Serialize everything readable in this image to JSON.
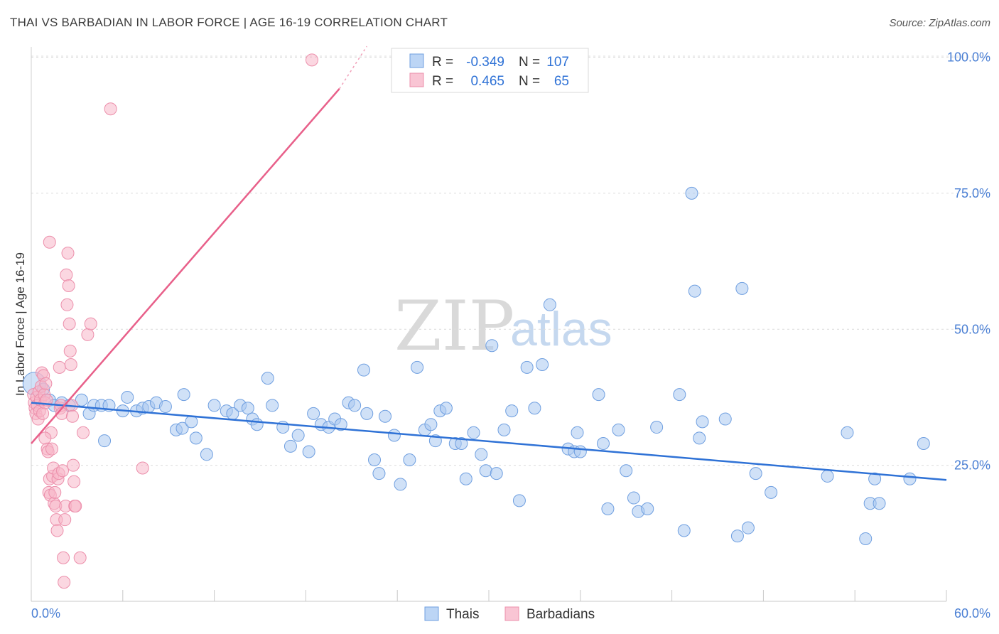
{
  "title": "THAI VS BARBADIAN IN LABOR FORCE | AGE 16-19 CORRELATION CHART",
  "source": "Source: ZipAtlas.com",
  "colors": {
    "thai_fill": "#a9c8f0",
    "thai_stroke": "#6f9fe0",
    "thai_line": "#2f72d6",
    "barb_fill": "#f7b6c8",
    "barb_stroke": "#ec8fab",
    "barb_line": "#e8608a",
    "label_blue": "#4a7fd4"
  },
  "legend": {
    "row1": {
      "r_label": "R =",
      "r_value": "-0.349",
      "n_label": "N =",
      "n_value": "107"
    },
    "row2": {
      "r_label": "R =",
      "r_value": "0.465",
      "n_label": "N =",
      "n_value": "65"
    }
  },
  "watermark": {
    "zip": "ZIP",
    "atlas": "atlas"
  },
  "chart_data": {
    "type": "scatter",
    "title": "THAI VS BARBADIAN IN LABOR FORCE | AGE 16-19 CORRELATION CHART",
    "xlabel": "",
    "ylabel": "In Labor Force | Age 16-19",
    "xlim": [
      0,
      60
    ],
    "ylim": [
      0,
      105
    ],
    "x_tick_labels": {
      "left": "0.0%",
      "right": "60.0%"
    },
    "y_tick_labels": [
      "100.0%",
      "75.0%",
      "50.0%",
      "25.0%"
    ],
    "y_tick_values": [
      100,
      75,
      50,
      25
    ],
    "series": [
      {
        "name": "Thais",
        "r": -0.349,
        "n": 107,
        "trend": {
          "x1": 0,
          "y1": 36.5,
          "x2": 60,
          "y2": 22.3
        },
        "points": [
          [
            0.2,
            40.0
          ],
          [
            0.8,
            39.0
          ],
          [
            1.2,
            37.0
          ],
          [
            1.5,
            36.0
          ],
          [
            2.0,
            36.5
          ],
          [
            2.5,
            36.0
          ],
          [
            3.3,
            37.0
          ],
          [
            3.8,
            34.5
          ],
          [
            4.1,
            36.0
          ],
          [
            4.6,
            36.0
          ],
          [
            4.8,
            29.5
          ],
          [
            5.1,
            36.0
          ],
          [
            6.0,
            35.0
          ],
          [
            6.3,
            37.5
          ],
          [
            6.9,
            35.0
          ],
          [
            7.3,
            35.5
          ],
          [
            7.7,
            35.8
          ],
          [
            8.2,
            36.5
          ],
          [
            8.8,
            35.8
          ],
          [
            9.5,
            31.5
          ],
          [
            9.9,
            31.8
          ],
          [
            10.0,
            38.0
          ],
          [
            10.5,
            33.0
          ],
          [
            10.8,
            30.0
          ],
          [
            11.5,
            27.0
          ],
          [
            12.0,
            36.0
          ],
          [
            12.8,
            35.0
          ],
          [
            13.2,
            34.5
          ],
          [
            13.7,
            36.0
          ],
          [
            14.2,
            35.5
          ],
          [
            14.5,
            33.5
          ],
          [
            14.8,
            32.5
          ],
          [
            15.5,
            41.0
          ],
          [
            15.8,
            36.0
          ],
          [
            16.5,
            32.0
          ],
          [
            17.0,
            28.5
          ],
          [
            17.5,
            30.5
          ],
          [
            18.2,
            27.5
          ],
          [
            18.5,
            34.5
          ],
          [
            19.0,
            32.5
          ],
          [
            19.5,
            32.0
          ],
          [
            19.9,
            33.5
          ],
          [
            20.3,
            32.5
          ],
          [
            20.8,
            36.5
          ],
          [
            21.2,
            36.0
          ],
          [
            21.8,
            42.5
          ],
          [
            22.0,
            34.5
          ],
          [
            22.5,
            26.0
          ],
          [
            22.8,
            23.5
          ],
          [
            23.2,
            34.0
          ],
          [
            23.8,
            30.5
          ],
          [
            24.2,
            21.5
          ],
          [
            24.8,
            26.0
          ],
          [
            25.3,
            43.0
          ],
          [
            25.8,
            31.5
          ],
          [
            26.2,
            32.5
          ],
          [
            26.5,
            29.5
          ],
          [
            26.8,
            35.0
          ],
          [
            27.2,
            35.5
          ],
          [
            27.8,
            29.0
          ],
          [
            28.2,
            29.0
          ],
          [
            28.5,
            22.5
          ],
          [
            29.0,
            31.0
          ],
          [
            29.5,
            27.0
          ],
          [
            29.8,
            24.0
          ],
          [
            30.2,
            47.0
          ],
          [
            30.5,
            23.5
          ],
          [
            31.0,
            31.5
          ],
          [
            31.5,
            35.0
          ],
          [
            32.0,
            18.5
          ],
          [
            32.5,
            43.0
          ],
          [
            33.0,
            35.5
          ],
          [
            33.5,
            43.5
          ],
          [
            34.0,
            54.5
          ],
          [
            35.2,
            28.0
          ],
          [
            35.6,
            27.5
          ],
          [
            35.8,
            31.0
          ],
          [
            36.0,
            27.5
          ],
          [
            37.2,
            38.0
          ],
          [
            37.5,
            29.0
          ],
          [
            37.8,
            17.0
          ],
          [
            38.5,
            31.5
          ],
          [
            39.0,
            24.0
          ],
          [
            39.5,
            19.0
          ],
          [
            39.8,
            16.5
          ],
          [
            40.4,
            17.0
          ],
          [
            41.0,
            32.0
          ],
          [
            42.5,
            38.0
          ],
          [
            42.8,
            13.0
          ],
          [
            43.3,
            75.0
          ],
          [
            43.5,
            57.0
          ],
          [
            43.8,
            30.0
          ],
          [
            44.0,
            33.0
          ],
          [
            45.5,
            33.5
          ],
          [
            46.3,
            12.0
          ],
          [
            46.6,
            57.5
          ],
          [
            47.0,
            13.5
          ],
          [
            47.5,
            23.5
          ],
          [
            48.5,
            20.0
          ],
          [
            52.2,
            23.0
          ],
          [
            53.5,
            31.0
          ],
          [
            54.7,
            11.5
          ],
          [
            55.0,
            18.0
          ],
          [
            55.3,
            22.5
          ],
          [
            55.6,
            18.0
          ],
          [
            57.6,
            22.5
          ],
          [
            58.5,
            29.0
          ]
        ]
      },
      {
        "name": "Barbadians",
        "r": 0.465,
        "n": 65,
        "trend": {
          "x1": 0,
          "y1": 29.0,
          "x2": 22.0,
          "y2": 100.0
        },
        "points": [
          [
            0.15,
            38.0
          ],
          [
            0.2,
            36.5
          ],
          [
            0.25,
            35.5
          ],
          [
            0.3,
            34.5
          ],
          [
            0.35,
            37.5
          ],
          [
            0.4,
            36.0
          ],
          [
            0.45,
            33.5
          ],
          [
            0.5,
            38.5
          ],
          [
            0.55,
            35.0
          ],
          [
            0.6,
            37.0
          ],
          [
            0.65,
            39.5
          ],
          [
            0.7,
            42.0
          ],
          [
            0.75,
            34.5
          ],
          [
            0.8,
            41.5
          ],
          [
            0.85,
            38.0
          ],
          [
            0.9,
            36.5
          ],
          [
            0.95,
            40.0
          ],
          [
            1.0,
            37.0
          ],
          [
            1.05,
            28.0
          ],
          [
            1.1,
            27.5
          ],
          [
            1.15,
            20.0
          ],
          [
            1.2,
            22.5
          ],
          [
            1.25,
            19.5
          ],
          [
            1.3,
            31.0
          ],
          [
            1.35,
            28.0
          ],
          [
            1.4,
            23.0
          ],
          [
            1.45,
            24.5
          ],
          [
            1.5,
            18.0
          ],
          [
            1.55,
            20.0
          ],
          [
            1.6,
            17.5
          ],
          [
            1.65,
            15.0
          ],
          [
            1.7,
            13.0
          ],
          [
            1.75,
            22.5
          ],
          [
            1.8,
            23.5
          ],
          [
            1.85,
            43.0
          ],
          [
            1.9,
            35.5
          ],
          [
            1.95,
            36.0
          ],
          [
            2.0,
            34.5
          ],
          [
            2.05,
            24.0
          ],
          [
            2.1,
            8.0
          ],
          [
            2.15,
            3.5
          ],
          [
            2.2,
            15.0
          ],
          [
            2.25,
            17.5
          ],
          [
            2.3,
            60.0
          ],
          [
            2.35,
            54.5
          ],
          [
            2.4,
            64.0
          ],
          [
            2.45,
            58.0
          ],
          [
            2.5,
            51.0
          ],
          [
            2.55,
            46.0
          ],
          [
            2.6,
            43.5
          ],
          [
            2.65,
            36.0
          ],
          [
            2.7,
            34.0
          ],
          [
            2.75,
            25.0
          ],
          [
            2.8,
            22.0
          ],
          [
            2.85,
            17.5
          ],
          [
            2.9,
            17.5
          ],
          [
            3.2,
            8.0
          ],
          [
            3.4,
            31.0
          ],
          [
            3.7,
            49.0
          ],
          [
            3.9,
            51.0
          ],
          [
            5.2,
            90.5
          ],
          [
            7.3,
            24.5
          ],
          [
            18.4,
            99.5
          ],
          [
            1.2,
            66.0
          ],
          [
            0.9,
            30.0
          ]
        ]
      }
    ]
  }
}
